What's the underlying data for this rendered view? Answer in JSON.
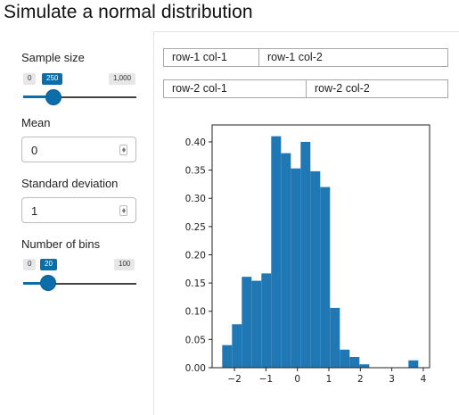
{
  "page": {
    "title": "Simulate a normal distribution"
  },
  "sidebar": {
    "sample_size": {
      "label": "Sample size",
      "min": "0",
      "max": "1,000",
      "value": "250",
      "fraction": 0.25
    },
    "mean": {
      "label": "Mean",
      "value": "0"
    },
    "sd": {
      "label": "Standard deviation",
      "value": "1"
    },
    "bins": {
      "label": "Number of bins",
      "min": "0",
      "max": "100",
      "value": "20",
      "fraction": 0.2
    }
  },
  "grid": {
    "row1": [
      "row-1 col-1",
      "row-1 col-2"
    ],
    "row2": [
      "row-2 col-1",
      "row-2 col-2"
    ]
  },
  "chart_data": {
    "type": "bar",
    "bar_color": "#1f77b4",
    "bin_start": -2.39,
    "bin_width": 0.3115,
    "values": [
      0.04,
      0.077,
      0.161,
      0.154,
      0.167,
      0.41,
      0.38,
      0.353,
      0.4,
      0.348,
      0.32,
      0.106,
      0.032,
      0.019,
      0.006,
      0.0,
      0.0,
      0.0,
      0.0,
      0.013
    ],
    "xlim": [
      -2.71,
      4.2
    ],
    "ylim": [
      0,
      0.43
    ],
    "xticks": [
      -2,
      -1,
      0,
      1,
      2,
      3,
      4
    ],
    "xtick_labels": [
      "−2",
      "−1",
      "0",
      "1",
      "2",
      "3",
      "4"
    ],
    "yticks": [
      0.0,
      0.05,
      0.1,
      0.15,
      0.2,
      0.25,
      0.3,
      0.35,
      0.4
    ],
    "ytick_labels": [
      "0.00",
      "0.05",
      "0.10",
      "0.15",
      "0.20",
      "0.25",
      "0.30",
      "0.35",
      "0.40"
    ]
  }
}
